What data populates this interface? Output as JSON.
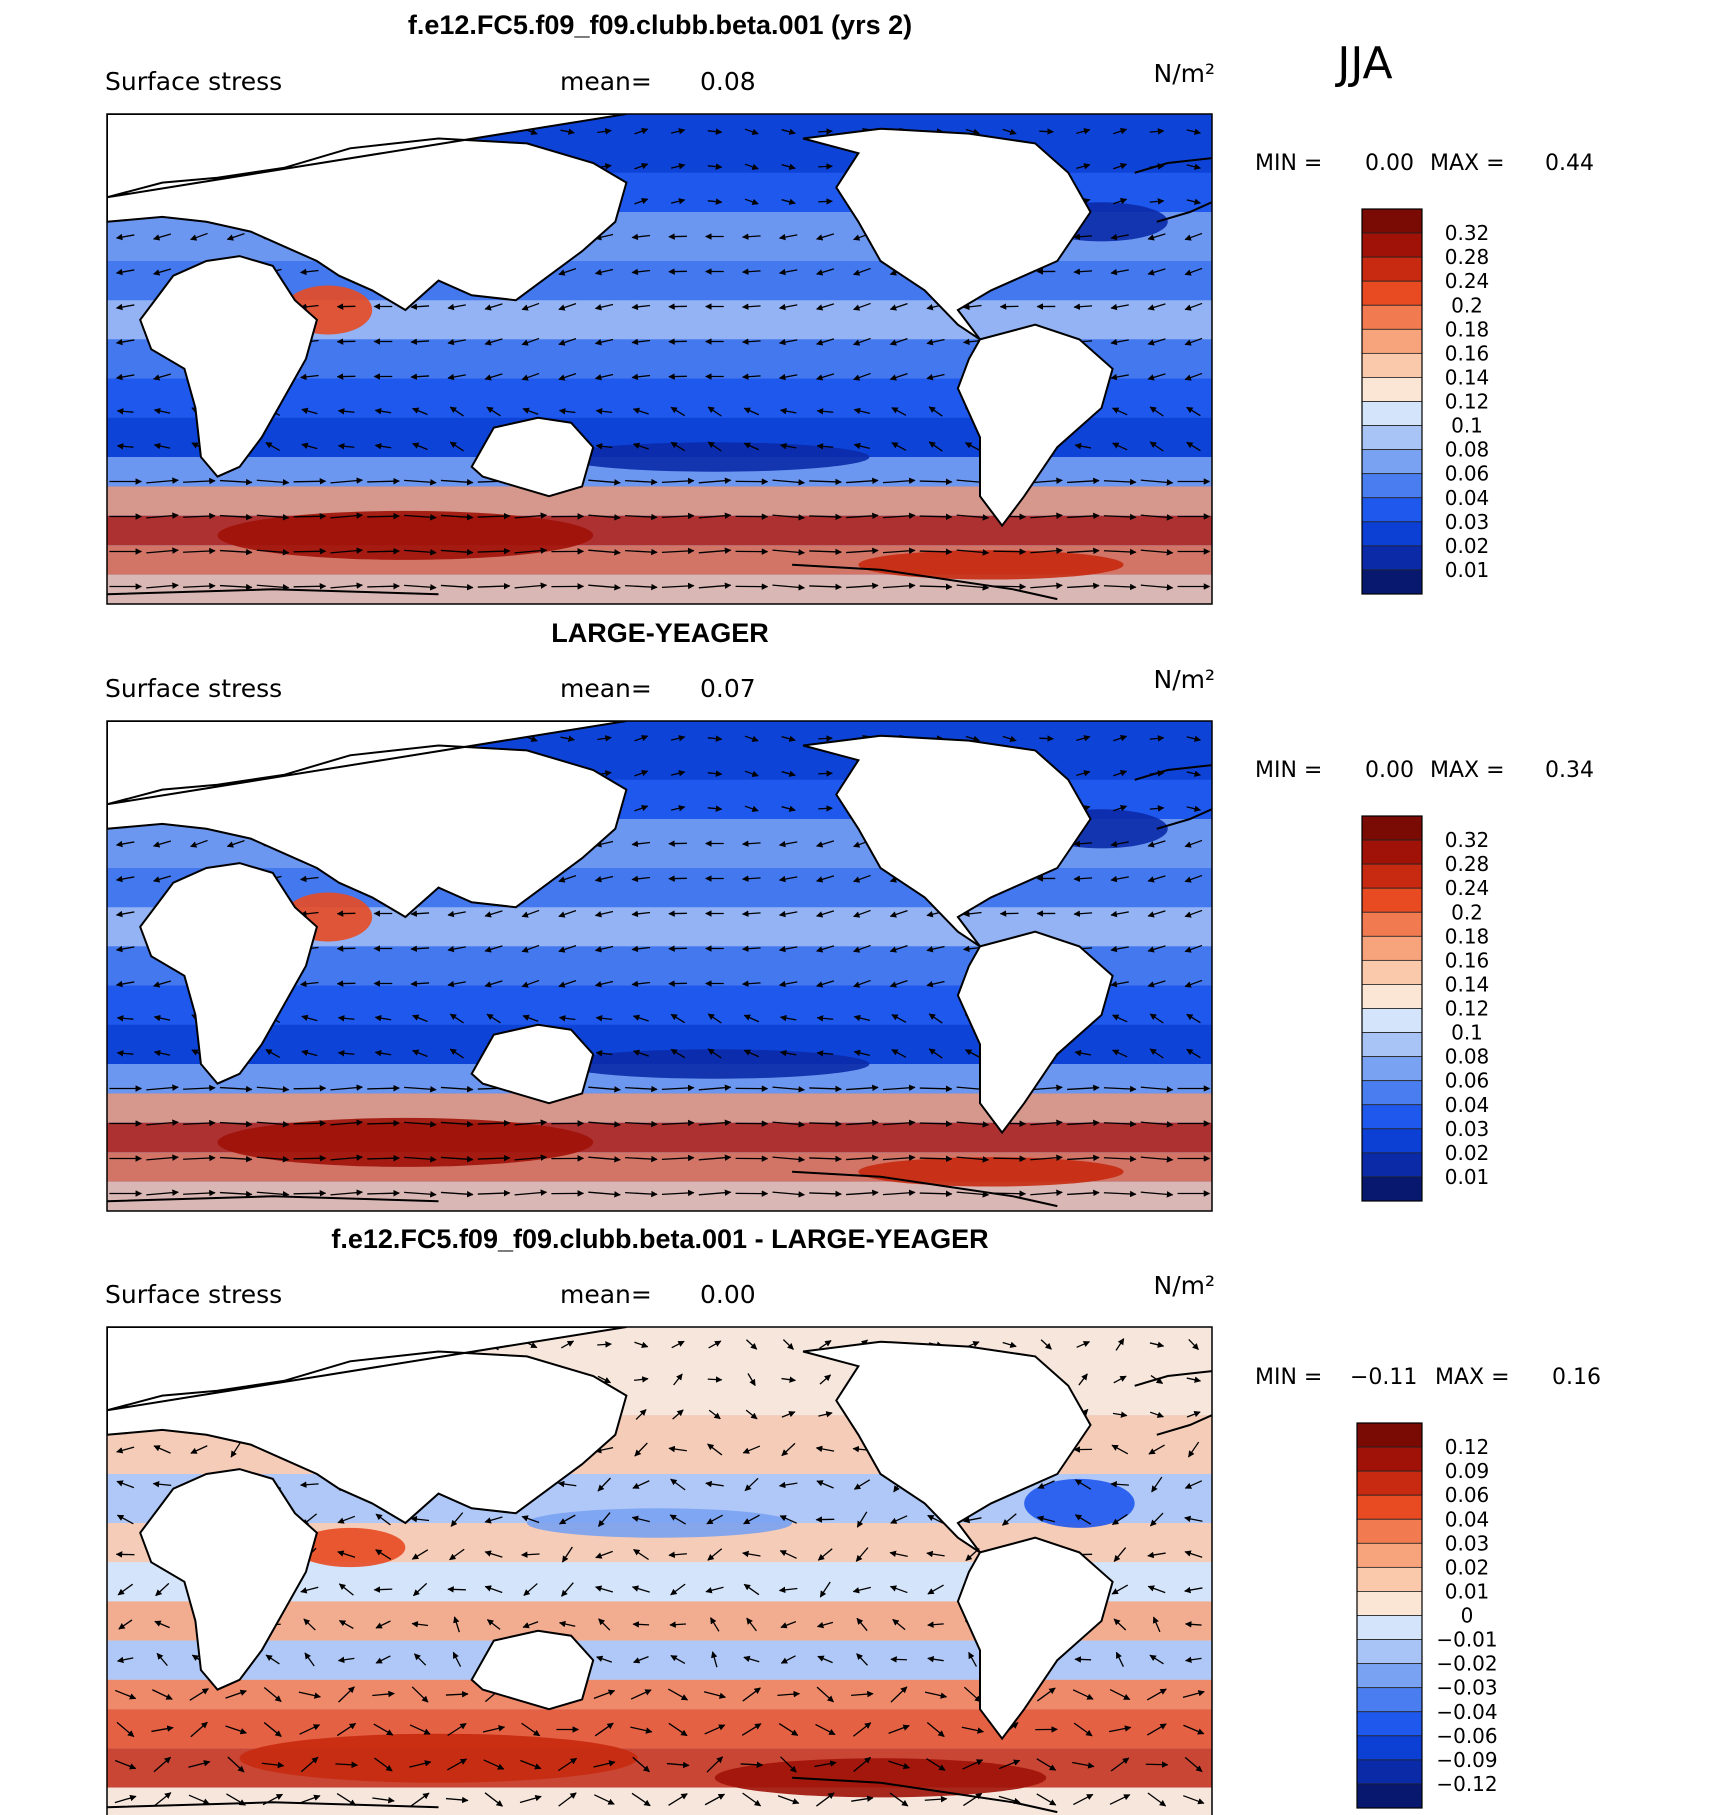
{
  "season": "JJA",
  "colors": {
    "mean_scale": [
      "#08186e",
      "#0a2aa8",
      "#0c3fd4",
      "#1f58ec",
      "#4a7ef0",
      "#7aa2f2",
      "#a8c3f6",
      "#d4e4fa",
      "#fbe6d6",
      "#fac8aa",
      "#f7a37c",
      "#f27a50",
      "#e84a22",
      "#c72a10",
      "#a01208",
      "#7a0a04"
    ],
    "diff_scale": [
      "#08186e",
      "#0a2aa8",
      "#0c3fd4",
      "#1f58ec",
      "#4a7ef0",
      "#7aa2f2",
      "#a8c3f6",
      "#d4e4fa",
      "#fbe6d6",
      "#fac8aa",
      "#f7a37c",
      "#f27a50",
      "#e84a22",
      "#c72a10",
      "#a01208",
      "#7a0a04"
    ],
    "land": "#ffffff",
    "coast": "#000000",
    "arrow": "#000000"
  },
  "chart_data": [
    {
      "type": "heatmap",
      "title": "f.e12.FC5.f09_f09.clubb.beta.001 (yrs 2)",
      "variable": "Surface stress",
      "mean_label": "mean=",
      "mean": "0.08",
      "units": "N/m²",
      "min_label": "MIN =",
      "min": "0.00",
      "max_label": "MAX =",
      "max": "0.44",
      "colorbar": [
        "0.32",
        "0.28",
        "0.24",
        "0.2",
        "0.18",
        "0.16",
        "0.14",
        "0.12",
        "0.1",
        "0.08",
        "0.06",
        "0.04",
        "0.03",
        "0.02",
        "0.01"
      ]
    },
    {
      "type": "heatmap",
      "title": "LARGE-YEAGER",
      "variable": "Surface stress",
      "mean_label": "mean=",
      "mean": "0.07",
      "units": "N/m²",
      "min_label": "MIN =",
      "min": "0.00",
      "max_label": "MAX =",
      "max": "0.34",
      "colorbar": [
        "0.32",
        "0.28",
        "0.24",
        "0.2",
        "0.18",
        "0.16",
        "0.14",
        "0.12",
        "0.1",
        "0.08",
        "0.06",
        "0.04",
        "0.03",
        "0.02",
        "0.01"
      ]
    },
    {
      "type": "heatmap",
      "title": "f.e12.FC5.f09_f09.clubb.beta.001 - LARGE-YEAGER",
      "variable": "Surface stress",
      "mean_label": "mean=",
      "mean": "0.00",
      "units": "N/m²",
      "min_label": "MIN =",
      "min": "−0.11",
      "max_label": "MAX =",
      "max": "0.16",
      "colorbar": [
        "0.12",
        "0.09",
        "0.06",
        "0.04",
        "0.03",
        "0.02",
        "0.01",
        "0",
        "−0.01",
        "−0.02",
        "−0.03",
        "−0.04",
        "−0.06",
        "−0.09",
        "−0.12"
      ]
    }
  ]
}
